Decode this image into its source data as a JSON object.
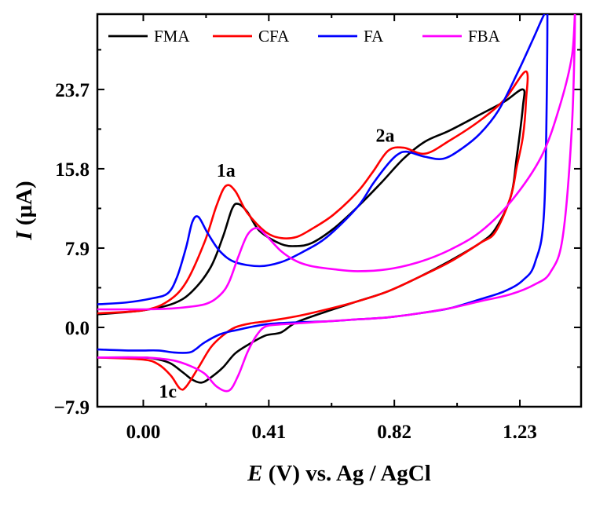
{
  "chart_data": {
    "type": "line",
    "title": "",
    "xlabel_symbol": "E",
    "xlabel_rest": " (V) vs. Ag / AgCl",
    "ylabel_symbol": "I",
    "ylabel_rest": " (μA)",
    "xlim": [
      -0.15,
      1.43
    ],
    "ylim": [
      -7.9,
      31.2
    ],
    "xticks": [
      0.0,
      0.41,
      0.82,
      1.23
    ],
    "xtick_labels": [
      "0.00",
      "0.41",
      "0.82",
      "1.23"
    ],
    "yticks": [
      -7.9,
      0.0,
      7.9,
      15.8,
      23.7
    ],
    "ytick_labels": [
      "−7.9",
      "0.0",
      "7.9",
      "15.8",
      "23.7"
    ],
    "legend_position": "top",
    "series": [
      {
        "name": "FMA",
        "color": "#000000",
        "x": [
          -0.15,
          0.0,
          0.1,
          0.16,
          0.22,
          0.26,
          0.29,
          0.31,
          0.34,
          0.38,
          0.45,
          0.5,
          0.55,
          0.62,
          0.7,
          0.78,
          0.85,
          0.92,
          1.0,
          1.1,
          1.18,
          1.24,
          1.24,
          1.22,
          1.2,
          1.15,
          1.1,
          1.0,
          0.9,
          0.8,
          0.7,
          0.6,
          0.5,
          0.45,
          0.4,
          0.35,
          0.3,
          0.26,
          0.22,
          0.19,
          0.16,
          0.13,
          0.09,
          0.05,
          0.0,
          -0.15
        ],
        "y": [
          1.3,
          1.7,
          2.4,
          3.6,
          6.0,
          9.0,
          11.8,
          12.3,
          11.5,
          9.6,
          8.3,
          8.1,
          8.4,
          9.8,
          12.0,
          14.5,
          16.8,
          18.5,
          19.6,
          21.2,
          22.5,
          23.7,
          22.0,
          17.0,
          13.0,
          9.8,
          8.4,
          6.6,
          5.0,
          3.6,
          2.6,
          1.6,
          0.5,
          -0.5,
          -0.8,
          -1.6,
          -2.6,
          -4.0,
          -5.0,
          -5.5,
          -5.2,
          -4.5,
          -3.6,
          -3.2,
          -3.0,
          -3.0
        ]
      },
      {
        "name": "CFA",
        "color": "#ff0000",
        "x": [
          -0.15,
          0.0,
          0.08,
          0.14,
          0.2,
          0.24,
          0.27,
          0.3,
          0.34,
          0.4,
          0.45,
          0.5,
          0.55,
          0.62,
          0.7,
          0.75,
          0.8,
          0.85,
          0.92,
          1.0,
          1.1,
          1.18,
          1.25,
          1.25,
          1.24,
          1.22,
          1.2,
          1.15,
          1.1,
          1.0,
          0.9,
          0.8,
          0.7,
          0.6,
          0.5,
          0.4,
          0.35,
          0.3,
          0.26,
          0.22,
          0.18,
          0.14,
          0.12,
          0.09,
          0.05,
          0.0,
          -0.15
        ],
        "y": [
          1.4,
          1.7,
          2.6,
          4.5,
          8.5,
          12.2,
          14.1,
          13.6,
          11.4,
          9.5,
          8.9,
          9.0,
          9.8,
          11.2,
          13.5,
          15.5,
          17.6,
          17.9,
          17.3,
          18.6,
          20.6,
          22.7,
          25.5,
          22.5,
          19.0,
          16.0,
          13.0,
          9.5,
          8.4,
          6.5,
          5.0,
          3.6,
          2.6,
          1.8,
          1.1,
          0.6,
          0.4,
          0.0,
          -0.8,
          -2.0,
          -4.0,
          -5.9,
          -6.1,
          -4.8,
          -3.7,
          -3.2,
          -3.0
        ]
      },
      {
        "name": "FA",
        "color": "#0000ff",
        "x": [
          -0.15,
          -0.05,
          0.03,
          0.08,
          0.11,
          0.14,
          0.16,
          0.18,
          0.21,
          0.25,
          0.3,
          0.38,
          0.45,
          0.52,
          0.6,
          0.7,
          0.75,
          0.8,
          0.83,
          0.86,
          0.92,
          0.98,
          1.04,
          1.1,
          1.16,
          1.22,
          1.27,
          1.31,
          1.32,
          1.31,
          1.28,
          1.24,
          1.18,
          1.1,
          1.0,
          0.9,
          0.8,
          0.7,
          0.6,
          0.5,
          0.4,
          0.3,
          0.25,
          0.2,
          0.17,
          0.15,
          0.1,
          0.05,
          0.0,
          -0.05,
          -0.15
        ],
        "y": [
          2.3,
          2.5,
          2.9,
          3.4,
          5.0,
          8.0,
          10.5,
          11.0,
          9.4,
          7.6,
          6.5,
          6.1,
          6.5,
          7.5,
          9.0,
          12.0,
          14.3,
          16.3,
          17.2,
          17.5,
          17.0,
          16.8,
          17.8,
          19.3,
          21.6,
          25.2,
          28.5,
          31.2,
          31.2,
          12.0,
          6.5,
          4.7,
          3.6,
          2.8,
          1.9,
          1.4,
          1.0,
          0.8,
          0.6,
          0.5,
          0.3,
          -0.3,
          -0.7,
          -1.5,
          -2.2,
          -2.5,
          -2.5,
          -2.3,
          -2.3,
          -2.3,
          -2.2
        ]
      },
      {
        "name": "FBA",
        "color": "#ff00ff",
        "x": [
          -0.15,
          0.0,
          0.1,
          0.2,
          0.25,
          0.28,
          0.31,
          0.34,
          0.37,
          0.4,
          0.45,
          0.5,
          0.55,
          0.62,
          0.7,
          0.8,
          0.9,
          1.0,
          1.1,
          1.2,
          1.3,
          1.36,
          1.4,
          1.41,
          1.4,
          1.37,
          1.33,
          1.28,
          1.2,
          1.1,
          1.0,
          0.9,
          0.8,
          0.7,
          0.6,
          0.5,
          0.45,
          0.4,
          0.37,
          0.34,
          0.31,
          0.28,
          0.24,
          0.2,
          0.15,
          0.1,
          0.05,
          0.0,
          -0.15
        ],
        "y": [
          1.8,
          1.8,
          1.9,
          2.3,
          3.2,
          4.5,
          7.0,
          9.2,
          9.9,
          9.2,
          7.6,
          6.6,
          6.1,
          5.8,
          5.6,
          5.8,
          6.5,
          7.7,
          9.5,
          12.5,
          17.0,
          22.0,
          27.0,
          31.2,
          20.0,
          9.0,
          5.5,
          4.3,
          3.3,
          2.6,
          1.9,
          1.4,
          1.0,
          0.8,
          0.6,
          0.4,
          0.3,
          0.1,
          -0.8,
          -2.5,
          -4.8,
          -6.3,
          -5.9,
          -4.6,
          -3.8,
          -3.3,
          -3.1,
          -3.0,
          -3.0
        ]
      }
    ],
    "annotations": [
      {
        "text": "1a",
        "x": 0.27,
        "y": 15.0
      },
      {
        "text": "2a",
        "x": 0.79,
        "y": 18.5
      },
      {
        "text": "1c",
        "x": 0.08,
        "y": -7.0
      }
    ]
  }
}
